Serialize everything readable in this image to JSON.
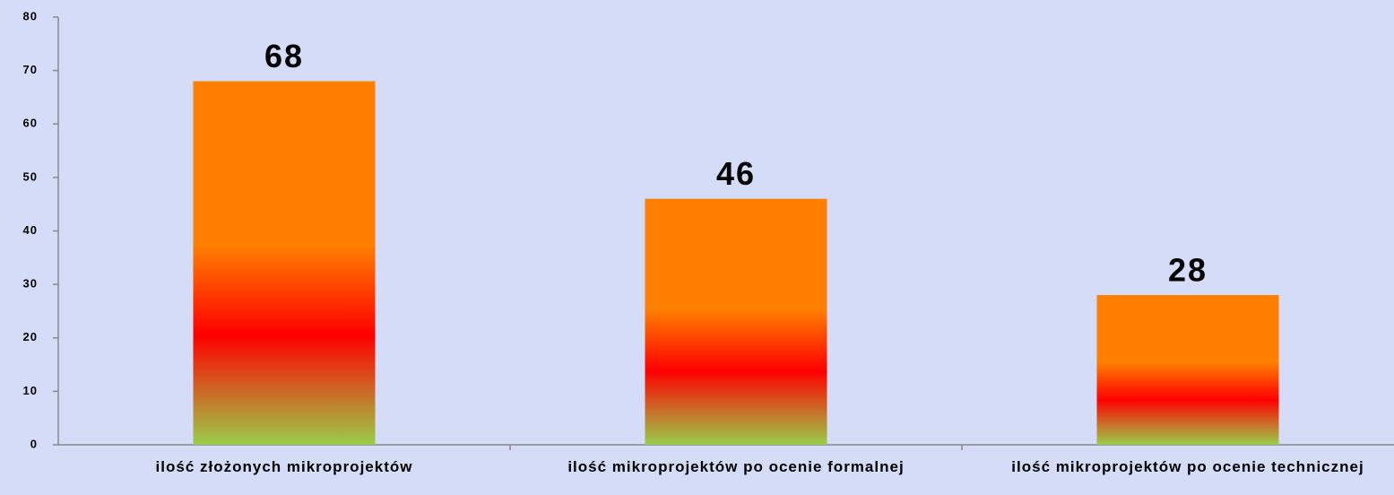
{
  "chart_data": {
    "type": "bar",
    "categories": [
      "ilość złożonych mikroprojektów",
      "ilość mikroprojektów po ocenie formalnej",
      "ilość mikroprojektów po ocenie technicznej"
    ],
    "values": [
      68,
      46,
      28
    ],
    "color": "#ff7f00",
    "ylim": [
      0,
      80
    ],
    "yticks": [
      0,
      10,
      20,
      30,
      40,
      50,
      60,
      70,
      80
    ],
    "data_labels": true
  }
}
